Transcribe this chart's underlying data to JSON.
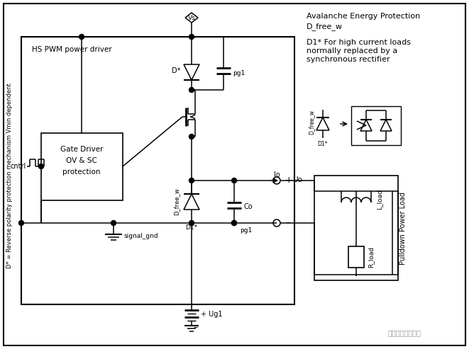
{
  "bg_color": "#ffffff",
  "left_label": "D* = Reverse polarity protection mechanism Vmin dependent",
  "top_right_line1": "Avalanche Energy Protection",
  "top_right_line2": "D_free_w",
  "top_right_line3": "D1* For high current loads",
  "top_right_line4": "normally replaced by a",
  "top_right_line5": "synchronous rectifier",
  "watermark": "汽车电子硬件设计",
  "fig_width": 6.61,
  "fig_height": 4.93,
  "dpi": 100
}
